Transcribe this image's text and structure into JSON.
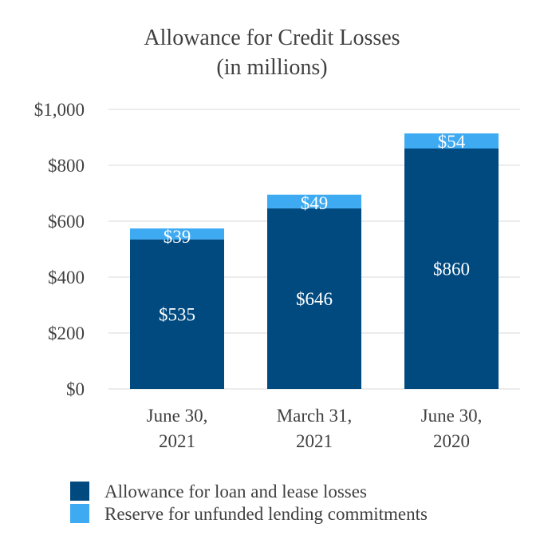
{
  "chart_data": {
    "type": "bar",
    "stacked": true,
    "title": "Allowance for Credit Losses",
    "subtitle": "(in millions)",
    "categories": [
      [
        "June 30,",
        "2021"
      ],
      [
        "March 31,",
        "2021"
      ],
      [
        "June 30,",
        "2020"
      ]
    ],
    "series": [
      {
        "name": "Allowance for loan and lease losses",
        "color": "#004a80",
        "values": [
          535,
          646,
          860
        ],
        "labels": [
          "$535",
          "$646",
          "$860"
        ]
      },
      {
        "name": "Reserve for unfunded lending commitments",
        "color": "#3daaf2",
        "values": [
          39,
          49,
          54
        ],
        "labels": [
          "$39",
          "$49",
          "$54"
        ]
      }
    ],
    "ylim": [
      0,
      1000
    ],
    "yticks": [
      0,
      200,
      400,
      600,
      800,
      1000
    ],
    "ytick_labels": [
      "$0",
      "$200",
      "$400",
      "$600",
      "$800",
      "$1,000"
    ],
    "grid": true,
    "legend_position": "bottom-left"
  }
}
